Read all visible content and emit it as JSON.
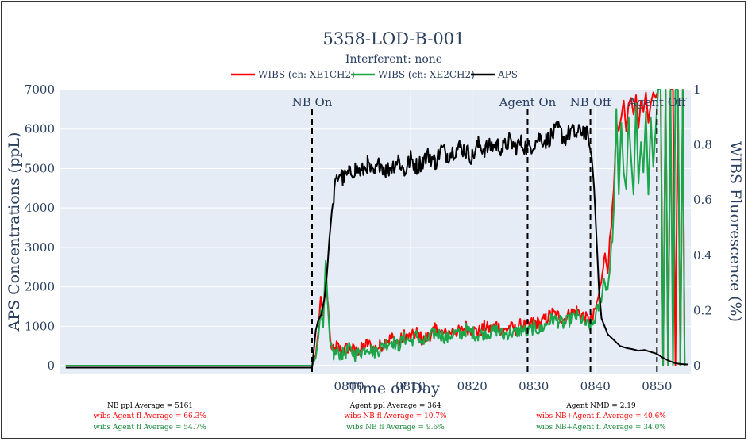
{
  "chart_data": {
    "type": "line",
    "title": "5358-LOD-B-001",
    "subtitle": "Interferent: none",
    "xlabel": "Time of Day",
    "ylabel": "APS Concentrations (ppL)",
    "y2label": "WIBS Fluorescence (%)",
    "xlim": [
      753.0,
      855.5
    ],
    "ylim": [
      -200,
      7000
    ],
    "y2lim": [
      -0.0286,
      1.0
    ],
    "xticks": [
      800,
      810,
      820,
      830,
      840,
      850
    ],
    "xtick_labels": [
      "0800",
      "0810",
      "0820",
      "0830",
      "0840",
      "0850"
    ],
    "yticks": [
      0,
      1000,
      2000,
      3000,
      4000,
      5000,
      6000,
      7000
    ],
    "ytick_labels": [
      "0",
      "1000",
      "2000",
      "3000",
      "4000",
      "5000",
      "6000",
      "7000"
    ],
    "y2ticks": [
      0,
      0.2,
      0.4,
      0.6,
      0.8,
      1.0
    ],
    "y2tick_labels": [
      "0",
      "0.2",
      "0.4",
      "0.6",
      "0.8",
      "1"
    ],
    "grid": true,
    "legend_position": "top-center",
    "events": [
      {
        "label": "NB On",
        "x": 794.0
      },
      {
        "label": "Agent On",
        "x": 829.0
      },
      {
        "label": "NB Off",
        "x": 839.2
      },
      {
        "label": "Agent Off",
        "x": 850.0
      }
    ],
    "series": [
      {
        "name": "WIBS (ch: XE1CH2)",
        "color": "#ff0000",
        "axis": "right",
        "x": [
          754.0,
          794.0,
          794.6,
          795.0,
          795.4,
          795.8,
          796.2,
          796.6,
          797.0,
          797.5,
          798.0,
          799.0,
          800.0,
          801.0,
          802.0,
          803.0,
          804.0,
          805.0,
          806.0,
          807.0,
          808.0,
          809.0,
          810.0,
          811.0,
          812.0,
          813.0,
          814.0,
          815.0,
          816.0,
          817.0,
          818.0,
          819.0,
          820.0,
          821.0,
          822.0,
          823.0,
          824.0,
          825.0,
          826.0,
          827.0,
          828.0,
          829.0,
          830.0,
          831.0,
          832.0,
          833.0,
          834.0,
          835.0,
          836.0,
          837.0,
          838.0,
          839.0,
          839.6,
          840.2,
          840.8,
          841.4,
          842.0,
          842.6,
          843.0,
          843.4,
          843.8,
          844.2,
          844.6,
          845.0,
          845.4,
          845.8,
          846.2,
          846.6,
          847.0,
          847.4,
          847.8,
          848.2,
          848.6,
          849.0,
          849.4,
          849.8,
          850.2,
          850.6,
          851.0,
          851.4,
          851.8,
          852.2,
          852.6,
          853.0,
          853.4,
          853.8,
          854.2,
          854.5
        ],
        "values": [
          0.0,
          0.0,
          0.04,
          0.12,
          0.25,
          0.18,
          0.3,
          0.22,
          0.08,
          0.05,
          0.07,
          0.05,
          0.07,
          0.05,
          0.06,
          0.08,
          0.06,
          0.07,
          0.09,
          0.1,
          0.08,
          0.11,
          0.1,
          0.12,
          0.09,
          0.11,
          0.13,
          0.12,
          0.11,
          0.13,
          0.12,
          0.14,
          0.13,
          0.12,
          0.14,
          0.13,
          0.15,
          0.12,
          0.14,
          0.13,
          0.15,
          0.14,
          0.16,
          0.15,
          0.17,
          0.19,
          0.18,
          0.17,
          0.19,
          0.2,
          0.18,
          0.16,
          0.17,
          0.22,
          0.28,
          0.4,
          0.36,
          0.5,
          0.63,
          0.88,
          0.85,
          0.9,
          0.96,
          0.85,
          0.95,
          0.97,
          0.91,
          0.98,
          0.86,
          0.96,
          0.92,
          0.99,
          0.88,
          0.95,
          0.99,
          0.97,
          1.0,
          1.0,
          0.0,
          1.0,
          0.0,
          1.0,
          1.0,
          0.0,
          1.0,
          0.0,
          1.0,
          0.0
        ]
      },
      {
        "name": "WIBS (ch: XE2CH2)",
        "color": "#1ca64a",
        "axis": "right",
        "x": [
          754.0,
          794.0,
          794.6,
          795.0,
          795.4,
          795.8,
          796.2,
          796.6,
          797.0,
          797.5,
          798.0,
          799.0,
          800.0,
          801.0,
          802.0,
          803.0,
          804.0,
          805.0,
          806.0,
          807.0,
          808.0,
          809.0,
          810.0,
          811.0,
          812.0,
          813.0,
          814.0,
          815.0,
          816.0,
          817.0,
          818.0,
          819.0,
          820.0,
          821.0,
          822.0,
          823.0,
          824.0,
          825.0,
          826.0,
          827.0,
          828.0,
          829.0,
          830.0,
          831.0,
          832.0,
          833.0,
          834.0,
          835.0,
          836.0,
          837.0,
          838.0,
          839.0,
          839.6,
          840.2,
          840.8,
          841.4,
          842.0,
          842.6,
          843.0,
          843.4,
          843.8,
          844.2,
          844.6,
          845.0,
          845.4,
          845.8,
          846.2,
          846.6,
          847.0,
          847.4,
          847.8,
          848.2,
          848.6,
          849.0,
          849.4,
          849.8,
          850.2,
          850.6,
          851.0,
          851.4,
          851.8,
          852.2,
          852.6,
          853.0,
          853.4,
          853.8,
          854.2,
          854.5
        ],
        "values": [
          0.0,
          0.0,
          0.03,
          0.1,
          0.2,
          0.14,
          0.38,
          0.2,
          0.06,
          0.04,
          0.05,
          0.04,
          0.06,
          0.04,
          0.05,
          0.07,
          0.05,
          0.06,
          0.08,
          0.09,
          0.07,
          0.1,
          0.09,
          0.11,
          0.08,
          0.1,
          0.12,
          0.11,
          0.1,
          0.12,
          0.11,
          0.13,
          0.12,
          0.11,
          0.12,
          0.12,
          0.13,
          0.11,
          0.12,
          0.12,
          0.13,
          0.12,
          0.14,
          0.13,
          0.15,
          0.17,
          0.16,
          0.15,
          0.17,
          0.18,
          0.16,
          0.14,
          0.15,
          0.19,
          0.23,
          0.31,
          0.28,
          0.42,
          0.55,
          0.93,
          0.62,
          0.88,
          0.7,
          0.64,
          0.9,
          0.75,
          0.62,
          0.95,
          0.66,
          0.81,
          0.7,
          0.92,
          0.62,
          0.9,
          0.72,
          0.86,
          1.0,
          1.0,
          0.0,
          1.0,
          0.0,
          1.0,
          0.0,
          1.0,
          1.0,
          0.0,
          1.0,
          0.0
        ]
      },
      {
        "name": "APS",
        "color": "#000000",
        "axis": "left",
        "x": [
          754.0,
          794.0,
          794.6,
          795.0,
          795.5,
          796.0,
          796.4,
          796.8,
          797.2,
          797.6,
          798.0,
          798.5,
          799.0,
          800.0,
          801.0,
          802.0,
          803.0,
          804.0,
          805.0,
          806.0,
          807.0,
          808.0,
          809.0,
          810.0,
          811.0,
          812.0,
          813.0,
          814.0,
          815.0,
          816.0,
          817.0,
          818.0,
          819.0,
          820.0,
          821.0,
          822.0,
          823.0,
          824.0,
          825.0,
          826.0,
          827.0,
          828.0,
          829.0,
          830.0,
          831.0,
          832.0,
          833.0,
          834.0,
          835.0,
          836.0,
          837.0,
          838.0,
          838.6,
          839.0,
          839.4,
          839.8,
          840.2,
          840.6,
          841.0,
          841.5,
          842.0,
          843.0,
          844.0,
          845.0,
          846.0,
          847.0,
          848.0,
          849.0,
          850.0,
          851.0,
          852.0,
          853.0,
          854.0,
          855.0
        ],
        "values": [
          -50,
          -50,
          900,
          1150,
          1300,
          1700,
          2300,
          3200,
          3900,
          4400,
          4700,
          4900,
          4750,
          4850,
          5000,
          4900,
          5100,
          4800,
          5150,
          4950,
          5050,
          5250,
          4900,
          5250,
          5050,
          5200,
          5350,
          5150,
          5500,
          5350,
          5450,
          5550,
          5450,
          5300,
          5600,
          5500,
          5550,
          5600,
          5500,
          5700,
          5550,
          5650,
          5500,
          5650,
          5800,
          5700,
          5850,
          6000,
          5750,
          5950,
          5850,
          6000,
          5850,
          5600,
          5300,
          4500,
          3200,
          1900,
          1200,
          1000,
          800,
          650,
          500,
          450,
          420,
          380,
          400,
          350,
          300,
          200,
          120,
          60,
          40,
          30
        ]
      }
    ],
    "noise": {
      "aps_amplitude": 230,
      "wibs_amplitude": 0.025
    }
  },
  "stats": {
    "col1": {
      "line1": "NB ppl Average = 5161",
      "line2": "wibs Agent fl Average = 66.3%",
      "line3": "wibs Agent fl Average = 54.7%"
    },
    "col2": {
      "line1": "Agent ppl Average = 364",
      "line2": "wibs NB fl Average = 10.7%",
      "line3": "wibs NB fl Average = 9.6%"
    },
    "col3": {
      "line1": "Agent NMD = 2.19",
      "line2": "wibs NB+Agent fl Average = 40.6%",
      "line3": "wibs NB+Agent fl Average = 34.0%"
    }
  }
}
